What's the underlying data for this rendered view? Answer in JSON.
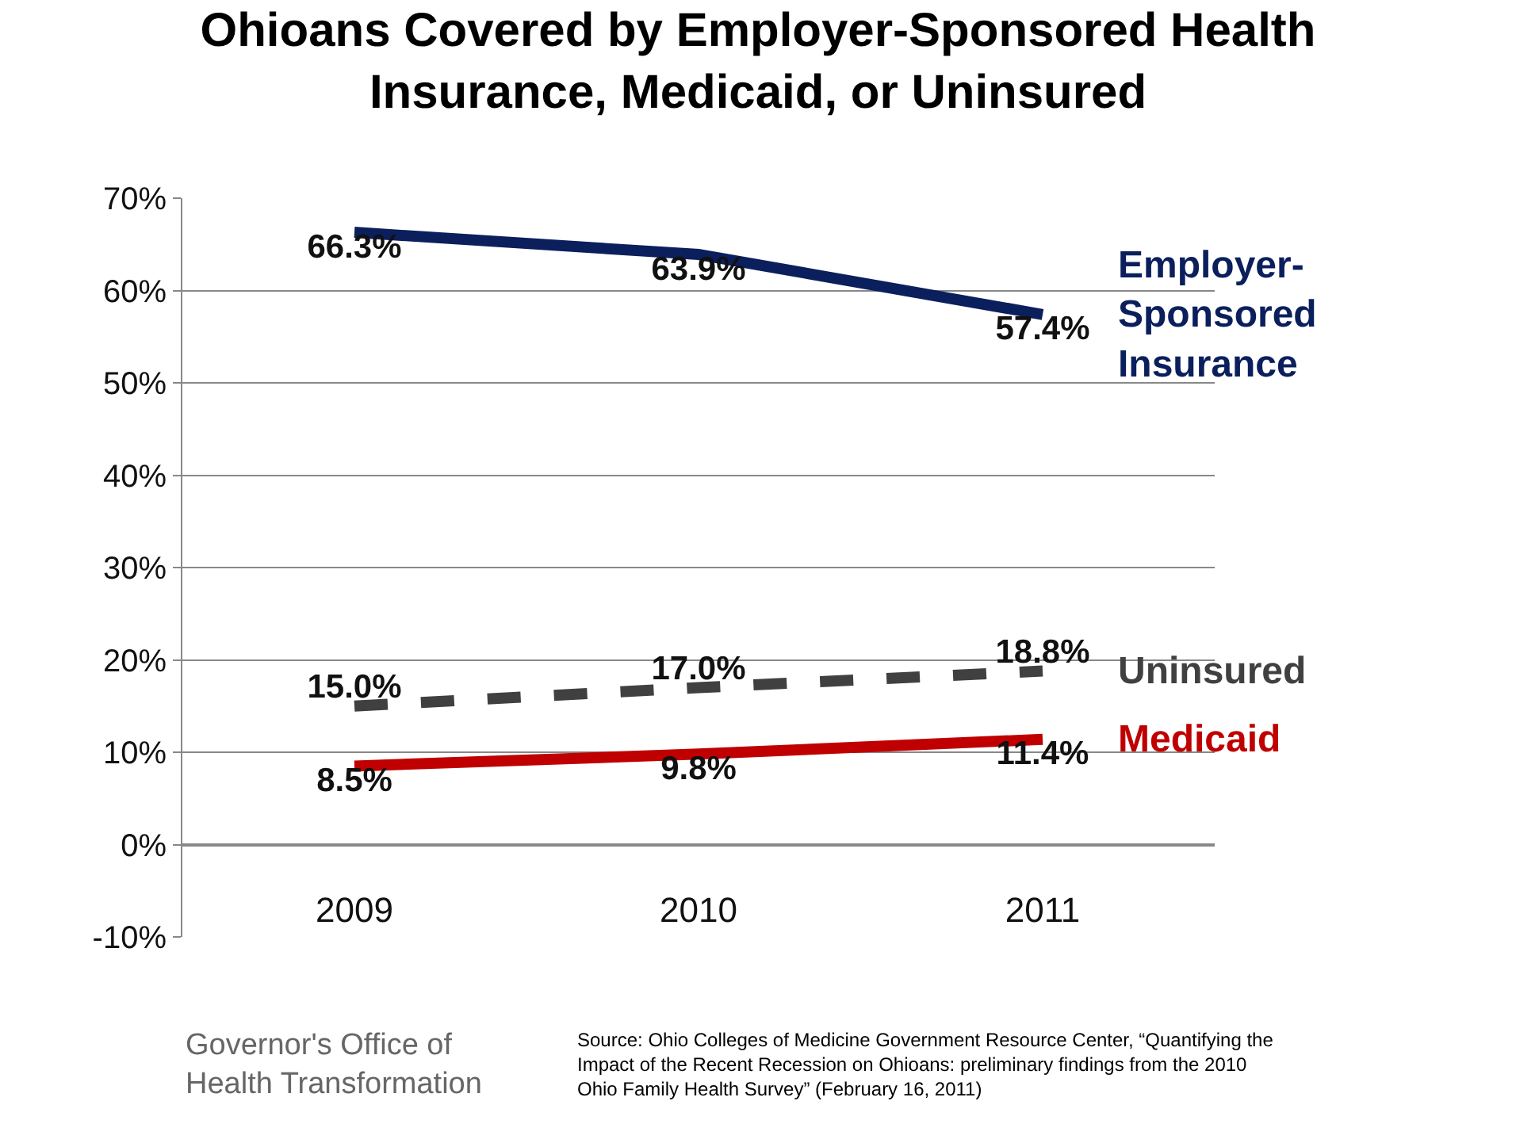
{
  "chart_data": {
    "type": "line",
    "title": "Ohioans Covered by Employer-Sponsored Health Insurance, Medicaid, or Uninsured",
    "categories": [
      "2009",
      "2010",
      "2011"
    ],
    "series": [
      {
        "name": "Employer-Sponsored Insurance",
        "color": "#0b1f5c",
        "values": [
          66.3,
          63.9,
          57.4
        ],
        "value_labels": [
          "66.3%",
          "63.9%",
          "57.4%"
        ],
        "line_style": "solid"
      },
      {
        "name": "Uninsured",
        "color": "#404040",
        "values": [
          15.0,
          17.0,
          18.8
        ],
        "value_labels": [
          "15.0%",
          "17.0%",
          "18.8%"
        ],
        "line_style": "dashed"
      },
      {
        "name": "Medicaid",
        "color": "#c00000",
        "values": [
          8.5,
          9.8,
          11.4
        ],
        "value_labels": [
          "8.5%",
          "9.8%",
          "11.4%"
        ],
        "line_style": "solid"
      }
    ],
    "ylim": [
      -10,
      70
    ],
    "yticks": [
      {
        "value": -10,
        "label": "-10%"
      },
      {
        "value": 0,
        "label": "0%"
      },
      {
        "value": 10,
        "label": "10%"
      },
      {
        "value": 20,
        "label": "20%"
      },
      {
        "value": 30,
        "label": "30%"
      },
      {
        "value": 40,
        "label": "40%"
      },
      {
        "value": 50,
        "label": "50%"
      },
      {
        "value": 60,
        "label": "60%"
      },
      {
        "value": 70,
        "label": "70%"
      }
    ],
    "grid": "y",
    "legend": false,
    "marker": "none",
    "annotations": [
      "Governor's Office of Health Transformation",
      "Source: Ohio Colleges of Medicine Government Resource Center, “Quantifying the Impact of the Recent Recession on Ohioans: preliminary findings from the 2010 Ohio Family Health Survey” (February 16, 2011)"
    ]
  }
}
